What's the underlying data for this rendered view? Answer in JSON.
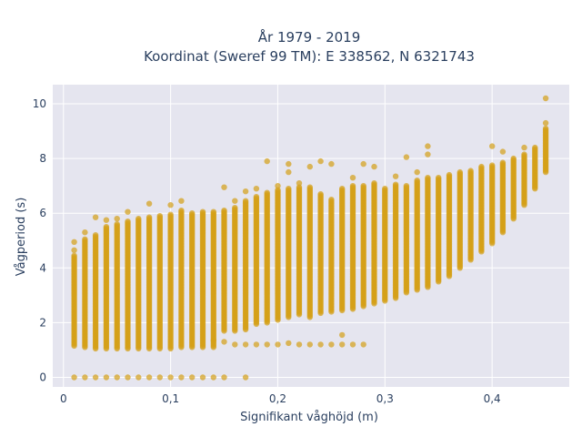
{
  "chart_data": {
    "type": "scatter",
    "title_line1": "År 1979 - 2019",
    "title_line2": "Koordinat (Sweref 99 TM): E 338562, N 6321743",
    "xlabel": "Signifikant våghöjd (m)",
    "ylabel": "Vågperiod (s)",
    "xlim": [
      -0.01,
      0.472
    ],
    "ylim": [
      -0.35,
      10.7
    ],
    "x_ticks": [
      0,
      0.1,
      0.2,
      0.3,
      0.4
    ],
    "x_tick_labels": [
      "0",
      "0,1",
      "0,2",
      "0,3",
      "0,4"
    ],
    "y_ticks": [
      0,
      2,
      4,
      6,
      8,
      10
    ],
    "y_tick_labels": [
      "0",
      "2",
      "4",
      "6",
      "8",
      "10"
    ],
    "grid": true,
    "legend": "none",
    "marker_color": "#D4A017",
    "plot_bg": "#E5E5EF",
    "series": [
      {
        "columns": [
          {
            "x": 0.01,
            "ymin": 1.15,
            "ymax": 4.45,
            "outliers": [
              4.65,
              4.95
            ]
          },
          {
            "x": 0.02,
            "ymin": 1.1,
            "ymax": 5.05,
            "outliers": [
              5.3
            ]
          },
          {
            "x": 0.03,
            "ymin": 1.05,
            "ymax": 5.2,
            "outliers": [
              5.85
            ]
          },
          {
            "x": 0.04,
            "ymin": 1.05,
            "ymax": 5.5,
            "outliers": [
              5.75
            ]
          },
          {
            "x": 0.05,
            "ymin": 1.05,
            "ymax": 5.6,
            "outliers": [
              5.8
            ]
          },
          {
            "x": 0.06,
            "ymin": 1.05,
            "ymax": 5.7,
            "outliers": [
              6.05
            ]
          },
          {
            "x": 0.07,
            "ymin": 1.05,
            "ymax": 5.8,
            "outliers": []
          },
          {
            "x": 0.08,
            "ymin": 1.05,
            "ymax": 5.85,
            "outliers": [
              6.35
            ]
          },
          {
            "x": 0.09,
            "ymin": 1.05,
            "ymax": 5.9,
            "outliers": []
          },
          {
            "x": 0.1,
            "ymin": 1.05,
            "ymax": 5.95,
            "outliers": [
              6.3
            ]
          },
          {
            "x": 0.11,
            "ymin": 1.1,
            "ymax": 6.1,
            "outliers": [
              6.45
            ]
          },
          {
            "x": 0.12,
            "ymin": 1.1,
            "ymax": 6.0,
            "outliers": []
          },
          {
            "x": 0.13,
            "ymin": 1.1,
            "ymax": 6.05,
            "outliers": []
          },
          {
            "x": 0.14,
            "ymin": 1.1,
            "ymax": 6.05,
            "outliers": []
          },
          {
            "x": 0.15,
            "ymin": 1.7,
            "ymax": 6.1,
            "outliers": [
              6.95
            ]
          },
          {
            "x": 0.16,
            "ymin": 1.7,
            "ymax": 6.2,
            "outliers": [
              6.45
            ]
          },
          {
            "x": 0.17,
            "ymin": 1.75,
            "ymax": 6.45,
            "outliers": [
              6.8
            ]
          },
          {
            "x": 0.18,
            "ymin": 1.95,
            "ymax": 6.6,
            "outliers": [
              6.9
            ]
          },
          {
            "x": 0.19,
            "ymin": 2.0,
            "ymax": 6.75,
            "outliers": [
              7.9
            ]
          },
          {
            "x": 0.2,
            "ymin": 2.1,
            "ymax": 6.85,
            "outliers": [
              7.0
            ]
          },
          {
            "x": 0.21,
            "ymin": 2.2,
            "ymax": 6.9,
            "outliers": [
              7.5,
              7.8
            ]
          },
          {
            "x": 0.22,
            "ymin": 2.3,
            "ymax": 6.95,
            "outliers": [
              7.1
            ]
          },
          {
            "x": 0.23,
            "ymin": 2.2,
            "ymax": 6.95,
            "outliers": [
              7.7
            ]
          },
          {
            "x": 0.24,
            "ymin": 2.35,
            "ymax": 6.7,
            "outliers": [
              7.9
            ]
          },
          {
            "x": 0.25,
            "ymin": 2.4,
            "ymax": 6.5,
            "outliers": [
              7.8
            ]
          },
          {
            "x": 0.26,
            "ymin": 2.45,
            "ymax": 6.9,
            "outliers": []
          },
          {
            "x": 0.27,
            "ymin": 2.5,
            "ymax": 7.0,
            "outliers": [
              7.3
            ]
          },
          {
            "x": 0.28,
            "ymin": 2.6,
            "ymax": 7.0,
            "outliers": [
              7.8
            ]
          },
          {
            "x": 0.29,
            "ymin": 2.7,
            "ymax": 7.1,
            "outliers": [
              7.7
            ]
          },
          {
            "x": 0.3,
            "ymin": 2.8,
            "ymax": 6.9,
            "outliers": []
          },
          {
            "x": 0.31,
            "ymin": 2.9,
            "ymax": 7.05,
            "outliers": [
              7.35
            ]
          },
          {
            "x": 0.32,
            "ymin": 3.1,
            "ymax": 7.0,
            "outliers": [
              8.05
            ]
          },
          {
            "x": 0.33,
            "ymin": 3.2,
            "ymax": 7.2,
            "outliers": [
              7.5
            ]
          },
          {
            "x": 0.34,
            "ymin": 3.3,
            "ymax": 7.3,
            "outliers": [
              8.15,
              8.45
            ]
          },
          {
            "x": 0.35,
            "ymin": 3.5,
            "ymax": 7.3,
            "outliers": []
          },
          {
            "x": 0.36,
            "ymin": 3.7,
            "ymax": 7.4,
            "outliers": []
          },
          {
            "x": 0.37,
            "ymin": 4.0,
            "ymax": 7.5,
            "outliers": []
          },
          {
            "x": 0.38,
            "ymin": 4.3,
            "ymax": 7.55,
            "outliers": []
          },
          {
            "x": 0.39,
            "ymin": 4.6,
            "ymax": 7.7,
            "outliers": []
          },
          {
            "x": 0.4,
            "ymin": 4.9,
            "ymax": 7.75,
            "outliers": [
              8.45
            ]
          },
          {
            "x": 0.41,
            "ymin": 5.3,
            "ymax": 7.85,
            "outliers": [
              8.25
            ]
          },
          {
            "x": 0.42,
            "ymin": 5.8,
            "ymax": 8.0,
            "outliers": []
          },
          {
            "x": 0.43,
            "ymin": 6.3,
            "ymax": 8.15,
            "outliers": [
              8.4
            ]
          },
          {
            "x": 0.44,
            "ymin": 6.9,
            "ymax": 8.4,
            "outliers": []
          },
          {
            "x": 0.45,
            "ymin": 7.5,
            "ymax": 9.1,
            "outliers": [
              9.3,
              10.2
            ]
          }
        ],
        "zero_period_points": [
          [
            0.01,
            0
          ],
          [
            0.02,
            0
          ],
          [
            0.03,
            0
          ],
          [
            0.04,
            0
          ],
          [
            0.05,
            0
          ],
          [
            0.06,
            0
          ],
          [
            0.07,
            0
          ],
          [
            0.08,
            0
          ],
          [
            0.09,
            0
          ],
          [
            0.1,
            0
          ],
          [
            0.11,
            0
          ],
          [
            0.12,
            0
          ],
          [
            0.13,
            0
          ],
          [
            0.14,
            0
          ],
          [
            0.15,
            0
          ],
          [
            0.17,
            0
          ]
        ],
        "low_period_points": [
          [
            0.14,
            1.35
          ],
          [
            0.15,
            1.3
          ],
          [
            0.16,
            1.2
          ],
          [
            0.17,
            1.2
          ],
          [
            0.18,
            1.2
          ],
          [
            0.19,
            1.2
          ],
          [
            0.2,
            1.2
          ],
          [
            0.21,
            1.25
          ],
          [
            0.22,
            1.2
          ],
          [
            0.23,
            1.2
          ],
          [
            0.24,
            1.2
          ],
          [
            0.25,
            1.2
          ],
          [
            0.26,
            1.2
          ],
          [
            0.27,
            1.2
          ],
          [
            0.28,
            1.2
          ],
          [
            0.26,
            1.55
          ]
        ]
      }
    ]
  }
}
